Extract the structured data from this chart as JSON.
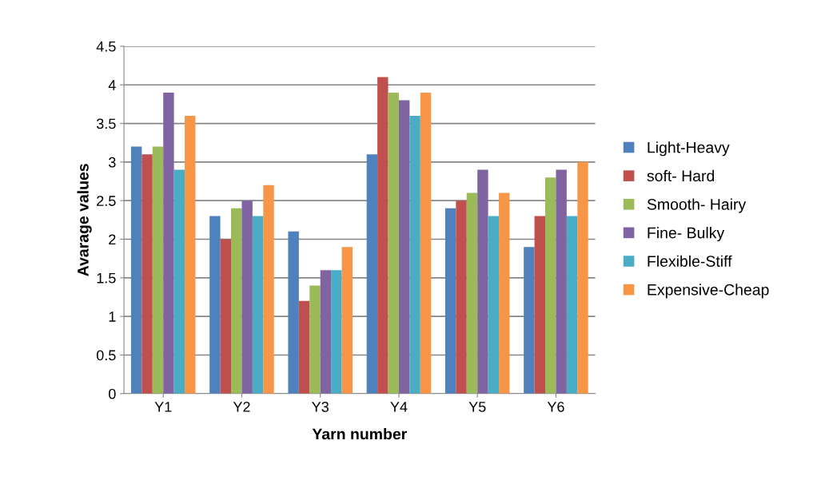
{
  "chart_data": {
    "type": "bar",
    "xlabel": "Yarn number",
    "ylabel": "Avarage values",
    "categories": [
      "Y1",
      "Y2",
      "Y3",
      "Y4",
      "Y5",
      "Y6"
    ],
    "series": [
      {
        "name": "Light-Heavy",
        "color": "#4f81bd",
        "values": [
          3.2,
          2.3,
          2.1,
          3.1,
          2.4,
          1.9
        ]
      },
      {
        "name": "soft- Hard",
        "color": "#c0504d",
        "values": [
          3.1,
          2.0,
          1.2,
          4.1,
          2.5,
          2.3
        ]
      },
      {
        "name": "Smooth- Hairy",
        "color": "#9bbb59",
        "values": [
          3.2,
          2.4,
          1.4,
          3.9,
          2.6,
          2.8
        ]
      },
      {
        "name": "Fine- Bulky",
        "color": "#8064a2",
        "values": [
          3.9,
          2.5,
          1.6,
          3.8,
          2.9,
          2.9
        ]
      },
      {
        "name": "Flexible-Stiff",
        "color": "#4bacc6",
        "values": [
          2.9,
          2.3,
          1.6,
          3.6,
          2.3,
          2.3
        ]
      },
      {
        "name": "Expensive-Cheap",
        "color": "#f79646",
        "values": [
          3.6,
          2.7,
          1.9,
          3.9,
          2.6,
          3.0
        ]
      }
    ],
    "ylim": [
      0,
      4.5
    ],
    "yticks": [
      0,
      0.5,
      1,
      1.5,
      2,
      2.5,
      3,
      3.5,
      4,
      4.5
    ],
    "grid": "y",
    "legend": "right"
  }
}
